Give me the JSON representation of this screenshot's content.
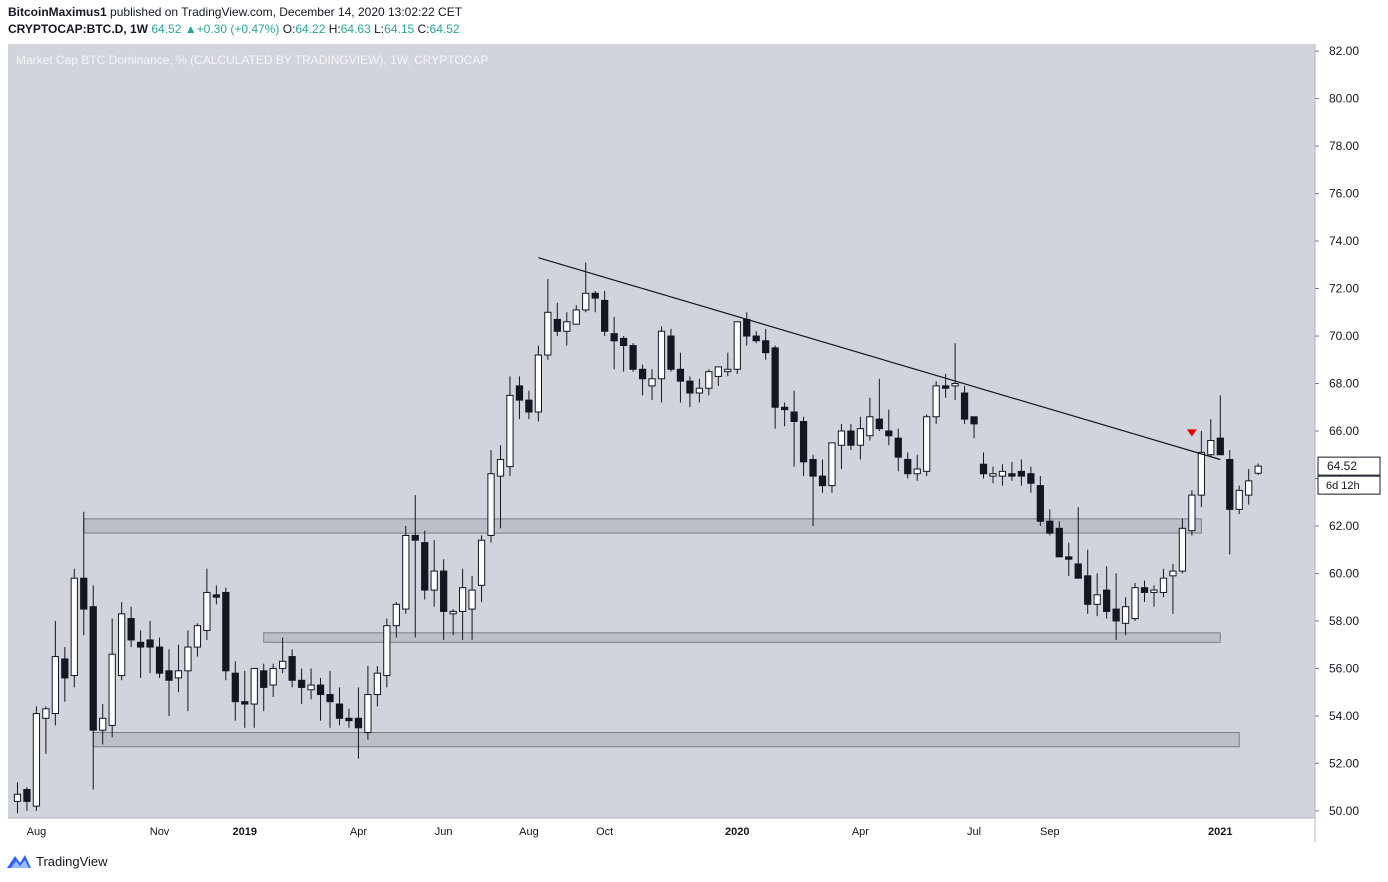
{
  "header": {
    "publisher": "BitcoinMaximus1",
    "published_text": "published on TradingView.com, December 14, 2020 13:02:22 CET",
    "symbol": "CRYPTOCAP:BTC.D, 1W",
    "last": "64.52",
    "change": "+0.30 (+0.47%)",
    "o_label": "O:",
    "o_value": "64.22",
    "h_label": "H:",
    "h_value": "64.63",
    "l_label": "L:",
    "l_value": "64.15",
    "c_label": "C:",
    "c_value": "64.52"
  },
  "footer": {
    "brand": "TradingView"
  },
  "colors": {
    "background": "#d1d4dc",
    "axis_panel": "#ffffff",
    "up_candle": "#ffffff",
    "down_candle": "#131722",
    "zone_fill": "#bcbfc7",
    "zone_border": "#7b7e86",
    "trendline": "#131722",
    "marker": "#e00000",
    "title_text": "#f4f5f7",
    "up_text": "#26a69a"
  },
  "chart_data": {
    "type": "candlestick",
    "title": "Market Cap BTC Dominance, % (CALCULATED BY TRADINGVIEW), 1W, CRYPTOCAP",
    "ylim": [
      49.7,
      82.3
    ],
    "y_ticks": [
      "50.00",
      "52.00",
      "54.00",
      "56.00",
      "58.00",
      "60.00",
      "62.00",
      "64.00",
      "66.00",
      "68.00",
      "70.00",
      "72.00",
      "74.00",
      "76.00",
      "78.00",
      "80.00",
      "82.00"
    ],
    "x_tick_labels": [
      {
        "label": "Aug",
        "week": 2,
        "bold": false
      },
      {
        "label": "Nov",
        "week": 15,
        "bold": false
      },
      {
        "label": "2019",
        "week": 24,
        "bold": true
      },
      {
        "label": "Apr",
        "week": 36,
        "bold": false
      },
      {
        "label": "Jun",
        "week": 45,
        "bold": false
      },
      {
        "label": "Aug",
        "week": 54,
        "bold": false
      },
      {
        "label": "Oct",
        "week": 62,
        "bold": false
      },
      {
        "label": "2020",
        "week": 76,
        "bold": true
      },
      {
        "label": "Apr",
        "week": 89,
        "bold": false
      },
      {
        "label": "Jul",
        "week": 101,
        "bold": false
      },
      {
        "label": "Sep",
        "week": 109,
        "bold": false
      },
      {
        "label": "2021",
        "week": 127,
        "bold": true
      }
    ],
    "week_range": [
      -1,
      137
    ],
    "last_price_label": "64.52",
    "countdown_label": "6d 12h",
    "candles": [
      {
        "o": 50.4,
        "h": 51.2,
        "l": 49.9,
        "c": 50.7
      },
      {
        "o": 50.9,
        "h": 51.0,
        "l": 50.0,
        "c": 50.4
      },
      {
        "o": 50.2,
        "h": 54.4,
        "l": 50.0,
        "c": 54.1
      },
      {
        "o": 53.9,
        "h": 54.4,
        "l": 52.4,
        "c": 54.3
      },
      {
        "o": 54.1,
        "h": 58.0,
        "l": 53.6,
        "c": 56.5
      },
      {
        "o": 56.4,
        "h": 56.9,
        "l": 54.6,
        "c": 55.6
      },
      {
        "o": 55.7,
        "h": 60.2,
        "l": 55.2,
        "c": 59.8
      },
      {
        "o": 59.8,
        "h": 62.6,
        "l": 57.4,
        "c": 58.5
      },
      {
        "o": 58.6,
        "h": 59.5,
        "l": 50.9,
        "c": 53.4
      },
      {
        "o": 53.4,
        "h": 54.5,
        "l": 52.8,
        "c": 53.9
      },
      {
        "o": 53.6,
        "h": 58.1,
        "l": 53.1,
        "c": 56.6
      },
      {
        "o": 55.7,
        "h": 58.8,
        "l": 55.5,
        "c": 58.3
      },
      {
        "o": 58.1,
        "h": 58.6,
        "l": 56.9,
        "c": 57.2
      },
      {
        "o": 57.1,
        "h": 57.6,
        "l": 55.6,
        "c": 56.9
      },
      {
        "o": 57.2,
        "h": 58.0,
        "l": 55.8,
        "c": 56.9
      },
      {
        "o": 56.9,
        "h": 57.3,
        "l": 55.6,
        "c": 55.8
      },
      {
        "o": 55.9,
        "h": 56.8,
        "l": 54.0,
        "c": 55.5
      },
      {
        "o": 55.6,
        "h": 57.0,
        "l": 55.0,
        "c": 55.9
      },
      {
        "o": 55.9,
        "h": 57.6,
        "l": 54.2,
        "c": 56.9
      },
      {
        "o": 56.9,
        "h": 57.9,
        "l": 56.5,
        "c": 57.8
      },
      {
        "o": 57.6,
        "h": 60.2,
        "l": 57.2,
        "c": 59.2
      },
      {
        "o": 59.1,
        "h": 59.5,
        "l": 58.7,
        "c": 59.0
      },
      {
        "o": 59.2,
        "h": 59.4,
        "l": 55.5,
        "c": 55.9
      },
      {
        "o": 55.8,
        "h": 56.3,
        "l": 53.8,
        "c": 54.6
      },
      {
        "o": 54.6,
        "h": 55.9,
        "l": 53.5,
        "c": 54.5
      },
      {
        "o": 54.5,
        "h": 55.9,
        "l": 53.5,
        "c": 56.0
      },
      {
        "o": 55.9,
        "h": 56.2,
        "l": 54.2,
        "c": 55.2
      },
      {
        "o": 55.3,
        "h": 56.2,
        "l": 54.8,
        "c": 56.0
      },
      {
        "o": 56.0,
        "h": 57.3,
        "l": 55.8,
        "c": 56.3
      },
      {
        "o": 56.5,
        "h": 56.8,
        "l": 55.2,
        "c": 55.5
      },
      {
        "o": 55.5,
        "h": 56.0,
        "l": 54.5,
        "c": 55.2
      },
      {
        "o": 55.1,
        "h": 56.0,
        "l": 54.7,
        "c": 55.3
      },
      {
        "o": 55.3,
        "h": 55.6,
        "l": 53.8,
        "c": 54.9
      },
      {
        "o": 54.9,
        "h": 55.9,
        "l": 53.5,
        "c": 54.6
      },
      {
        "o": 54.5,
        "h": 55.2,
        "l": 53.6,
        "c": 53.9
      },
      {
        "o": 53.9,
        "h": 54.3,
        "l": 53.5,
        "c": 53.8
      },
      {
        "o": 53.9,
        "h": 55.2,
        "l": 52.2,
        "c": 53.5
      },
      {
        "o": 53.3,
        "h": 56.1,
        "l": 53.0,
        "c": 54.9
      },
      {
        "o": 54.9,
        "h": 56.1,
        "l": 54.4,
        "c": 55.8
      },
      {
        "o": 55.7,
        "h": 58.1,
        "l": 55.2,
        "c": 57.8
      },
      {
        "o": 57.8,
        "h": 58.8,
        "l": 57.3,
        "c": 58.7
      },
      {
        "o": 58.5,
        "h": 62.0,
        "l": 58.3,
        "c": 61.6
      },
      {
        "o": 61.6,
        "h": 63.3,
        "l": 57.3,
        "c": 61.4
      },
      {
        "o": 61.3,
        "h": 61.8,
        "l": 58.9,
        "c": 59.3
      },
      {
        "o": 59.3,
        "h": 61.4,
        "l": 58.6,
        "c": 60.1
      },
      {
        "o": 60.1,
        "h": 60.6,
        "l": 57.2,
        "c": 58.4
      },
      {
        "o": 58.3,
        "h": 58.5,
        "l": 57.4,
        "c": 58.4
      },
      {
        "o": 58.4,
        "h": 60.2,
        "l": 57.2,
        "c": 59.4
      },
      {
        "o": 58.5,
        "h": 59.9,
        "l": 57.2,
        "c": 59.3
      },
      {
        "o": 59.5,
        "h": 61.6,
        "l": 58.8,
        "c": 61.4
      },
      {
        "o": 61.6,
        "h": 65.2,
        "l": 61.3,
        "c": 64.2
      },
      {
        "o": 64.1,
        "h": 65.4,
        "l": 61.9,
        "c": 64.8
      },
      {
        "o": 64.5,
        "h": 68.3,
        "l": 64.1,
        "c": 67.5
      },
      {
        "o": 67.9,
        "h": 68.3,
        "l": 66.5,
        "c": 67.3
      },
      {
        "o": 67.3,
        "h": 67.7,
        "l": 66.5,
        "c": 66.8
      },
      {
        "o": 66.8,
        "h": 69.6,
        "l": 66.4,
        "c": 69.2
      },
      {
        "o": 69.2,
        "h": 72.4,
        "l": 69.0,
        "c": 71.0
      },
      {
        "o": 70.7,
        "h": 71.4,
        "l": 70.0,
        "c": 70.2
      },
      {
        "o": 70.2,
        "h": 71.0,
        "l": 69.6,
        "c": 70.6
      },
      {
        "o": 70.5,
        "h": 71.3,
        "l": 70.5,
        "c": 71.1
      },
      {
        "o": 71.1,
        "h": 73.1,
        "l": 71.0,
        "c": 71.8
      },
      {
        "o": 71.8,
        "h": 71.9,
        "l": 71.0,
        "c": 71.6
      },
      {
        "o": 71.5,
        "h": 71.9,
        "l": 70.0,
        "c": 70.2
      },
      {
        "o": 70.1,
        "h": 70.8,
        "l": 68.6,
        "c": 69.8
      },
      {
        "o": 69.9,
        "h": 70.0,
        "l": 68.5,
        "c": 69.6
      },
      {
        "o": 69.6,
        "h": 69.7,
        "l": 68.5,
        "c": 68.6
      },
      {
        "o": 68.6,
        "h": 68.8,
        "l": 67.5,
        "c": 68.2
      },
      {
        "o": 67.9,
        "h": 68.6,
        "l": 67.3,
        "c": 68.2
      },
      {
        "o": 68.2,
        "h": 70.4,
        "l": 67.2,
        "c": 70.2
      },
      {
        "o": 70.0,
        "h": 70.3,
        "l": 68.5,
        "c": 68.6
      },
      {
        "o": 68.6,
        "h": 69.3,
        "l": 67.2,
        "c": 68.1
      },
      {
        "o": 68.1,
        "h": 68.3,
        "l": 67.0,
        "c": 67.6
      },
      {
        "o": 67.6,
        "h": 68.2,
        "l": 67.2,
        "c": 67.8
      },
      {
        "o": 67.8,
        "h": 68.6,
        "l": 67.5,
        "c": 68.5
      },
      {
        "o": 68.3,
        "h": 68.7,
        "l": 67.9,
        "c": 68.7
      },
      {
        "o": 68.5,
        "h": 69.3,
        "l": 68.3,
        "c": 68.6
      },
      {
        "o": 68.6,
        "h": 70.6,
        "l": 68.4,
        "c": 70.6
      },
      {
        "o": 70.7,
        "h": 71.0,
        "l": 69.6,
        "c": 70.0
      },
      {
        "o": 70.0,
        "h": 70.2,
        "l": 69.7,
        "c": 69.8
      },
      {
        "o": 69.8,
        "h": 70.3,
        "l": 69.0,
        "c": 69.3
      },
      {
        "o": 69.5,
        "h": 69.6,
        "l": 66.1,
        "c": 67.0
      },
      {
        "o": 67.0,
        "h": 67.2,
        "l": 66.2,
        "c": 66.9
      },
      {
        "o": 66.8,
        "h": 67.7,
        "l": 64.5,
        "c": 66.4
      },
      {
        "o": 66.4,
        "h": 66.6,
        "l": 64.1,
        "c": 64.7
      },
      {
        "o": 64.8,
        "h": 65.0,
        "l": 62.0,
        "c": 64.1
      },
      {
        "o": 64.1,
        "h": 64.8,
        "l": 63.4,
        "c": 63.7
      },
      {
        "o": 63.7,
        "h": 65.5,
        "l": 63.4,
        "c": 65.5
      },
      {
        "o": 65.4,
        "h": 66.3,
        "l": 64.4,
        "c": 66.0
      },
      {
        "o": 66.0,
        "h": 66.3,
        "l": 65.2,
        "c": 65.4
      },
      {
        "o": 65.4,
        "h": 66.6,
        "l": 64.8,
        "c": 66.1
      },
      {
        "o": 65.8,
        "h": 67.4,
        "l": 65.6,
        "c": 66.6
      },
      {
        "o": 66.5,
        "h": 68.2,
        "l": 66.0,
        "c": 66.1
      },
      {
        "o": 66.0,
        "h": 66.9,
        "l": 65.4,
        "c": 65.8
      },
      {
        "o": 65.7,
        "h": 66.1,
        "l": 64.3,
        "c": 64.9
      },
      {
        "o": 64.8,
        "h": 65.1,
        "l": 64.0,
        "c": 64.2
      },
      {
        "o": 64.2,
        "h": 65.0,
        "l": 63.9,
        "c": 64.4
      },
      {
        "o": 64.3,
        "h": 66.7,
        "l": 64.1,
        "c": 66.6
      },
      {
        "o": 66.6,
        "h": 68.1,
        "l": 66.3,
        "c": 67.9
      },
      {
        "o": 67.9,
        "h": 68.4,
        "l": 67.4,
        "c": 67.8
      },
      {
        "o": 67.9,
        "h": 69.7,
        "l": 67.3,
        "c": 68.0
      },
      {
        "o": 67.6,
        "h": 67.9,
        "l": 66.3,
        "c": 66.5
      },
      {
        "o": 66.6,
        "h": 66.6,
        "l": 65.7,
        "c": 66.3
      },
      {
        "o": 64.6,
        "h": 65.1,
        "l": 64.0,
        "c": 64.2
      },
      {
        "o": 64.1,
        "h": 64.5,
        "l": 63.8,
        "c": 64.2
      },
      {
        "o": 64.1,
        "h": 64.6,
        "l": 63.7,
        "c": 64.3
      },
      {
        "o": 64.2,
        "h": 64.7,
        "l": 63.9,
        "c": 64.1
      },
      {
        "o": 64.3,
        "h": 64.8,
        "l": 63.7,
        "c": 64.1
      },
      {
        "o": 64.2,
        "h": 64.5,
        "l": 63.4,
        "c": 63.8
      },
      {
        "o": 63.7,
        "h": 64.1,
        "l": 62.0,
        "c": 62.2
      },
      {
        "o": 62.2,
        "h": 62.7,
        "l": 61.6,
        "c": 61.7
      },
      {
        "o": 61.9,
        "h": 62.2,
        "l": 61.0,
        "c": 60.7
      },
      {
        "o": 60.7,
        "h": 61.3,
        "l": 59.9,
        "c": 60.6
      },
      {
        "o": 60.4,
        "h": 62.8,
        "l": 60.0,
        "c": 59.8
      },
      {
        "o": 59.9,
        "h": 61.0,
        "l": 58.3,
        "c": 58.7
      },
      {
        "o": 58.7,
        "h": 60.0,
        "l": 58.2,
        "c": 59.1
      },
      {
        "o": 59.3,
        "h": 60.3,
        "l": 58.1,
        "c": 58.4
      },
      {
        "o": 58.5,
        "h": 60.0,
        "l": 57.2,
        "c": 58.0
      },
      {
        "o": 57.9,
        "h": 59.0,
        "l": 57.4,
        "c": 58.6
      },
      {
        "o": 58.1,
        "h": 59.6,
        "l": 58.0,
        "c": 59.4
      },
      {
        "o": 59.4,
        "h": 59.7,
        "l": 58.8,
        "c": 59.2
      },
      {
        "o": 59.2,
        "h": 59.5,
        "l": 58.6,
        "c": 59.3
      },
      {
        "o": 59.2,
        "h": 60.2,
        "l": 59.0,
        "c": 59.8
      },
      {
        "o": 59.9,
        "h": 60.4,
        "l": 58.3,
        "c": 60.1
      },
      {
        "o": 60.1,
        "h": 62.3,
        "l": 60.0,
        "c": 61.9
      },
      {
        "o": 61.8,
        "h": 63.5,
        "l": 61.6,
        "c": 63.3
      },
      {
        "o": 63.3,
        "h": 66.0,
        "l": 62.8,
        "c": 65.1
      },
      {
        "o": 65.0,
        "h": 66.5,
        "l": 64.9,
        "c": 65.6
      },
      {
        "o": 65.7,
        "h": 67.5,
        "l": 65.0,
        "c": 65.0
      },
      {
        "o": 64.8,
        "h": 65.2,
        "l": 60.8,
        "c": 62.7
      },
      {
        "o": 62.7,
        "h": 63.7,
        "l": 62.5,
        "c": 63.5
      },
      {
        "o": 63.3,
        "h": 64.4,
        "l": 62.9,
        "c": 63.9
      },
      {
        "o": 64.22,
        "h": 64.63,
        "l": 64.15,
        "c": 64.52
      }
    ],
    "support_zones": [
      {
        "from_week": 7,
        "to_week": 125,
        "low": 61.7,
        "high": 62.3
      },
      {
        "from_week": 26,
        "to_week": 127,
        "low": 57.1,
        "high": 57.5
      },
      {
        "from_week": 8,
        "to_week": 129,
        "low": 52.7,
        "high": 53.3
      }
    ],
    "trendline": {
      "from_week": 55,
      "from_value": 73.3,
      "to_week": 127,
      "to_value": 64.8
    },
    "marker": {
      "type": "sell-triangle",
      "week": 124,
      "value": 65.9
    }
  }
}
